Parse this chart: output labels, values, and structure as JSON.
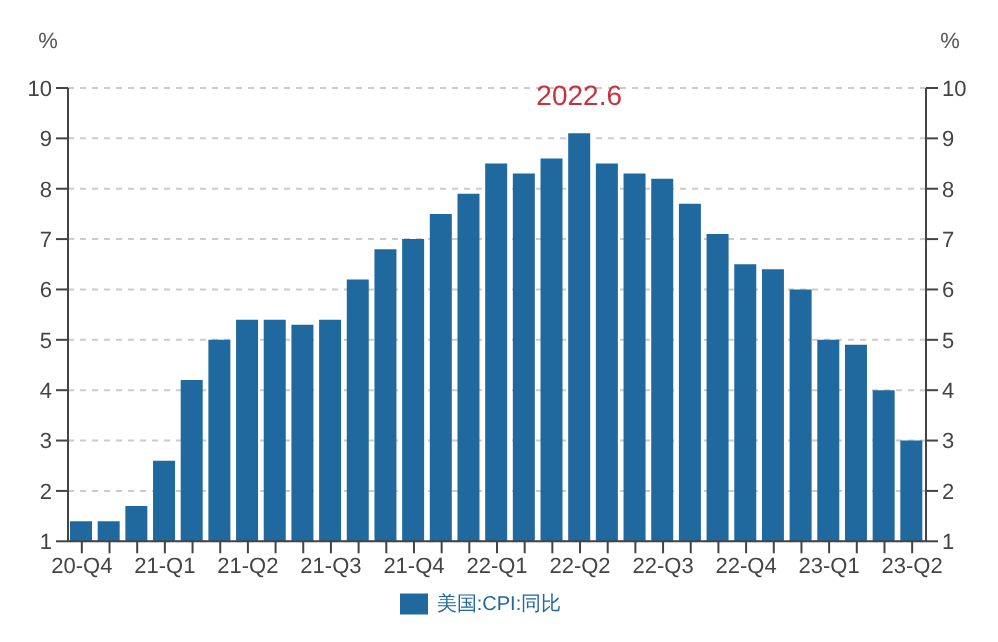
{
  "chart_data": {
    "type": "bar",
    "ylabel": "%",
    "y2label": "%",
    "categories": [
      "20-Q4",
      null,
      null,
      "21-Q1",
      null,
      null,
      "21-Q2",
      null,
      null,
      "21-Q3",
      null,
      null,
      "21-Q4",
      null,
      null,
      "22-Q1",
      null,
      null,
      "22-Q2",
      null,
      null,
      "22-Q3",
      null,
      null,
      "22-Q4",
      null,
      null,
      "23-Q1",
      null,
      null,
      "23-Q2"
    ],
    "series": [
      {
        "name": "美国:CPI:同比",
        "color": "#20699f",
        "values": [
          1.4,
          1.4,
          1.7,
          2.6,
          4.2,
          5.0,
          5.4,
          5.4,
          5.3,
          5.4,
          6.2,
          6.8,
          7.0,
          7.5,
          7.9,
          8.5,
          8.3,
          8.6,
          9.1,
          8.5,
          8.3,
          8.2,
          7.7,
          7.1,
          6.5,
          6.4,
          6.0,
          5.0,
          4.9,
          4.0,
          3.0
        ]
      }
    ],
    "ylim": [
      1,
      10
    ],
    "yticks": [
      1,
      2,
      3,
      4,
      5,
      6,
      7,
      8,
      9,
      10
    ],
    "y2lim": [
      1,
      10
    ],
    "y2ticks": [
      1,
      2,
      3,
      4,
      5,
      6,
      7,
      8,
      9,
      10
    ],
    "grid": "y",
    "legend": "bottom",
    "annotations": [
      {
        "text": "2022.6",
        "y": 9.1
      }
    ]
  }
}
